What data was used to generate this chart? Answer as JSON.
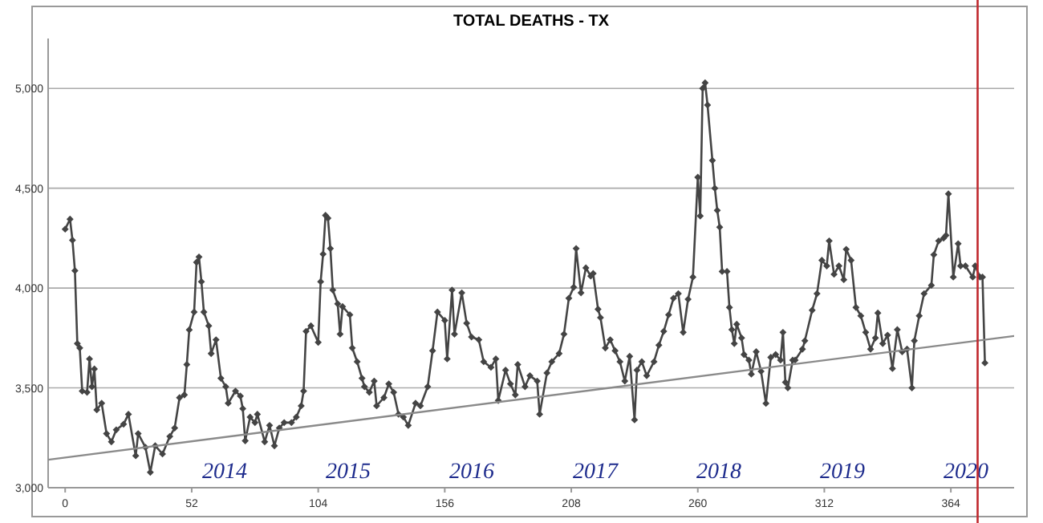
{
  "chart_data": {
    "type": "line",
    "title": "TOTAL DEATHS - TX",
    "xlim": [
      -7,
      390
    ],
    "xticks": [
      0,
      52,
      104,
      156,
      208,
      260,
      312,
      364
    ],
    "ylim": [
      3000,
      5250
    ],
    "yticks": [
      {
        "value": 3000,
        "label": "3,000"
      },
      {
        "value": 3500,
        "label": "3,500"
      },
      {
        "value": 4000,
        "label": "4,000"
      },
      {
        "value": 4500,
        "label": "4,500"
      },
      {
        "value": 5000,
        "label": "5,000"
      }
    ],
    "grid": "y",
    "series": [
      {
        "color": "#444444",
        "marker": "diamond",
        "x": [
          0,
          2,
          3,
          4,
          5,
          6,
          7,
          9,
          10,
          11,
          12,
          13,
          15,
          17,
          19,
          21,
          24,
          26,
          29,
          30,
          33,
          35,
          37,
          40,
          43,
          45,
          47,
          49,
          50,
          51,
          53,
          54,
          55,
          56,
          57,
          59,
          60,
          62,
          64,
          66,
          67,
          70,
          72,
          73,
          74,
          76,
          78,
          79,
          82,
          84,
          86,
          88,
          90,
          93,
          95,
          97,
          98,
          99,
          101,
          104,
          105,
          106,
          107,
          108,
          109,
          110,
          112,
          113,
          114,
          117,
          118,
          120,
          122,
          123,
          125,
          127,
          128,
          131,
          133,
          135,
          137,
          139,
          141,
          144,
          146,
          149,
          151,
          153,
          156,
          157,
          159,
          160,
          163,
          165,
          167,
          170,
          172,
          175,
          177,
          178,
          181,
          183,
          185,
          186,
          189,
          191,
          194,
          195,
          198,
          200,
          203,
          205,
          207,
          209,
          210,
          212,
          214,
          216,
          217,
          219,
          220,
          222,
          224,
          226,
          228,
          230,
          232,
          234,
          235,
          237,
          239,
          242,
          244,
          246,
          248,
          250,
          252,
          254,
          256,
          258,
          260,
          261,
          262,
          263,
          264,
          266,
          267,
          268,
          269,
          270,
          272,
          273,
          274,
          275,
          276,
          278,
          279,
          281,
          282,
          284,
          286,
          288,
          290,
          292,
          294,
          295,
          296,
          297,
          299,
          300,
          303,
          304,
          307,
          309,
          311,
          313,
          314,
          316,
          318,
          320,
          321,
          323,
          325,
          327,
          329,
          331,
          333,
          334,
          336,
          338,
          340,
          342,
          344,
          346,
          348,
          349,
          351,
          353,
          356,
          357,
          359,
          361,
          362,
          363,
          365,
          367,
          368,
          370,
          373,
          374,
          376,
          377,
          378
        ],
        "values": [
          4295,
          4345,
          4240,
          4087,
          3722,
          3700,
          3484,
          3478,
          3645,
          3506,
          3595,
          3390,
          3423,
          3271,
          3230,
          3290,
          3318,
          3368,
          3160,
          3271,
          3202,
          3077,
          3210,
          3169,
          3257,
          3299,
          3451,
          3465,
          3617,
          3791,
          3880,
          4129,
          4156,
          4032,
          3880,
          3811,
          3672,
          3741,
          3548,
          3506,
          3423,
          3484,
          3459,
          3396,
          3235,
          3354,
          3326,
          3368,
          3230,
          3312,
          3210,
          3299,
          3326,
          3326,
          3354,
          3410,
          3484,
          3783,
          3811,
          3728,
          4032,
          4170,
          4364,
          4350,
          4198,
          3990,
          3921,
          3769,
          3907,
          3866,
          3700,
          3631,
          3548,
          3506,
          3478,
          3534,
          3410,
          3451,
          3520,
          3478,
          3368,
          3354,
          3312,
          3423,
          3410,
          3506,
          3686,
          3880,
          3838,
          3645,
          3990,
          3769,
          3976,
          3824,
          3755,
          3741,
          3631,
          3603,
          3645,
          3437,
          3589,
          3520,
          3465,
          3617,
          3506,
          3561,
          3534,
          3368,
          3575,
          3631,
          3672,
          3769,
          3949,
          4004,
          4198,
          3976,
          4101,
          4060,
          4073,
          3894,
          3852,
          3700,
          3741,
          3686,
          3631,
          3534,
          3658,
          3340,
          3589,
          3631,
          3561,
          3631,
          3714,
          3783,
          3866,
          3949,
          3972,
          3778,
          3944,
          4055,
          4555,
          4361,
          5000,
          5028,
          4917,
          4639,
          4500,
          4389,
          4305,
          4083,
          4083,
          3903,
          3792,
          3722,
          3819,
          3750,
          3667,
          3639,
          3569,
          3681,
          3583,
          3422,
          3653,
          3667,
          3639,
          3778,
          3528,
          3500,
          3639,
          3639,
          3694,
          3736,
          3889,
          3972,
          4139,
          4111,
          4236,
          4069,
          4111,
          4042,
          4194,
          4139,
          3903,
          3861,
          3778,
          3694,
          3750,
          3875,
          3722,
          3764,
          3597,
          3792,
          3681,
          3694,
          3500,
          3736,
          3861,
          3972,
          4014,
          4167,
          4236,
          4250,
          4264,
          4472,
          4055,
          4222,
          4111,
          4111,
          4055,
          4111,
          4055,
          4055,
          3625
        ]
      },
      {
        "color": "#8a8a8a",
        "marker": "none",
        "x": [
          -7,
          390
        ],
        "values": [
          3140,
          3760
        ]
      }
    ],
    "ref_lines": [
      {
        "axis": "x",
        "value": 375,
        "color": "#c0282d"
      }
    ],
    "annotations": [
      "2014",
      "2015",
      "2016",
      "2017",
      "2018",
      "2019",
      "2020"
    ]
  }
}
